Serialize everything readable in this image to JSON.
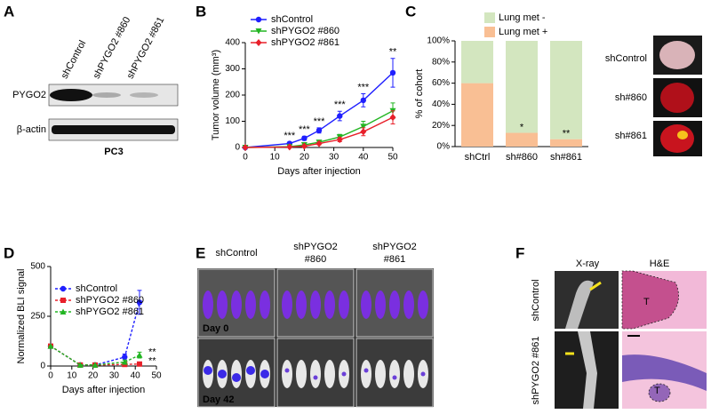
{
  "panels": {
    "a": {
      "letter": "A",
      "columns": [
        "shControl",
        "shPYGO2 #860",
        "shPYGO2 #861"
      ],
      "rows": [
        "PYGO2",
        "β-actin"
      ],
      "cell_line": "PC3"
    },
    "b": {
      "letter": "B"
    },
    "c": {
      "letter": "C",
      "photo_labels": [
        "shControl",
        "sh#860",
        "sh#861"
      ]
    },
    "d": {
      "letter": "D"
    },
    "e": {
      "letter": "E",
      "columns": [
        [
          "shControl"
        ],
        [
          "shPYGO2",
          "#860"
        ],
        [
          "shPYGO2",
          "#861"
        ]
      ],
      "rows": [
        "Day 0",
        "Day 42"
      ]
    },
    "f": {
      "letter": "F",
      "columns": [
        "X-ray",
        "H&E"
      ],
      "rows": [
        "shControl",
        "shPYGO2 #861"
      ],
      "tumor_marks": [
        "T",
        "T"
      ]
    }
  },
  "chart_data": [
    {
      "type": "line",
      "ylabel": "Tumor volume (mm³)",
      "xlabel": "Days after injection",
      "x": [
        0,
        15,
        20,
        25,
        32,
        40,
        50
      ],
      "xlim": [
        0,
        50
      ],
      "xticks": [
        0,
        10,
        20,
        30,
        40,
        50
      ],
      "ylim": [
        0,
        400
      ],
      "yticks": [
        0,
        100,
        200,
        300,
        400
      ],
      "series": [
        {
          "name": "shControl",
          "color": "#1f1fff",
          "marker": "circle",
          "values": [
            0,
            15,
            35,
            65,
            120,
            180,
            285
          ],
          "errors": [
            2,
            5,
            8,
            10,
            18,
            25,
            55
          ]
        },
        {
          "name": "shPYGO2 #860",
          "color": "#22b522",
          "marker": "triangle-down",
          "values": [
            0,
            3,
            10,
            20,
            40,
            80,
            140
          ],
          "errors": [
            1,
            2,
            4,
            5,
            10,
            20,
            30
          ]
        },
        {
          "name": "shPYGO2 #861",
          "color": "#e8202a",
          "marker": "diamond",
          "values": [
            0,
            2,
            5,
            15,
            30,
            60,
            115
          ],
          "errors": [
            1,
            2,
            3,
            5,
            8,
            15,
            25
          ]
        }
      ],
      "annotations": [
        {
          "text": "***",
          "x": 15
        },
        {
          "text": "***",
          "x": 20
        },
        {
          "text": "***",
          "x": 25
        },
        {
          "text": "***",
          "x": 32
        },
        {
          "text": "***",
          "x": 40
        },
        {
          "text": "**",
          "x": 50
        }
      ]
    },
    {
      "type": "stacked_bar",
      "ylabel": "% of cohort",
      "categories": [
        "shCtrl",
        "sh#860",
        "sh#861"
      ],
      "series": [
        {
          "name": "Lung met +",
          "color": "#f9bf94",
          "values": [
            60,
            13,
            7
          ]
        },
        {
          "name": "Lung met -",
          "color": "#d3e6bf",
          "values": [
            40,
            87,
            93
          ]
        }
      ],
      "ylim": [
        0,
        100
      ],
      "yticks": [
        {
          "value": 0,
          "label": "0%"
        },
        {
          "value": 20,
          "label": "20%"
        },
        {
          "value": 40,
          "label": "40%"
        },
        {
          "value": 60,
          "label": "60%"
        },
        {
          "value": 80,
          "label": "80%"
        },
        {
          "value": 100,
          "label": "100%"
        }
      ],
      "annotations": [
        {
          "text": "*",
          "category": 1
        },
        {
          "text": "**",
          "category": 2
        }
      ]
    },
    {
      "type": "line",
      "ylabel": "Normalized BLI signal",
      "xlabel": "Days after injection",
      "line_style": "dashed",
      "x": [
        0,
        14,
        21,
        35,
        42
      ],
      "xlim": [
        0,
        50
      ],
      "xticks": [
        0,
        10,
        20,
        30,
        40,
        50
      ],
      "ylim": [
        0,
        500
      ],
      "yticks": [
        0,
        250,
        500
      ],
      "series": [
        {
          "name": "shControl",
          "color": "#1f1fff",
          "marker": "circle",
          "values": [
            100,
            5,
            5,
            45,
            320
          ],
          "errors": [
            0,
            0,
            0,
            15,
            60
          ]
        },
        {
          "name": "shPYGO2 #860",
          "color": "#e8202a",
          "marker": "square",
          "values": [
            100,
            5,
            5,
            8,
            10
          ],
          "errors": [
            0,
            0,
            0,
            3,
            4
          ]
        },
        {
          "name": "shPYGO2 #861",
          "color": "#22b522",
          "marker": "triangle-up",
          "values": [
            100,
            5,
            5,
            20,
            55
          ],
          "errors": [
            0,
            0,
            0,
            10,
            15
          ]
        }
      ],
      "annotations": [
        {
          "text": "**",
          "series": 2
        },
        {
          "text": "**",
          "series": 1
        }
      ]
    }
  ]
}
